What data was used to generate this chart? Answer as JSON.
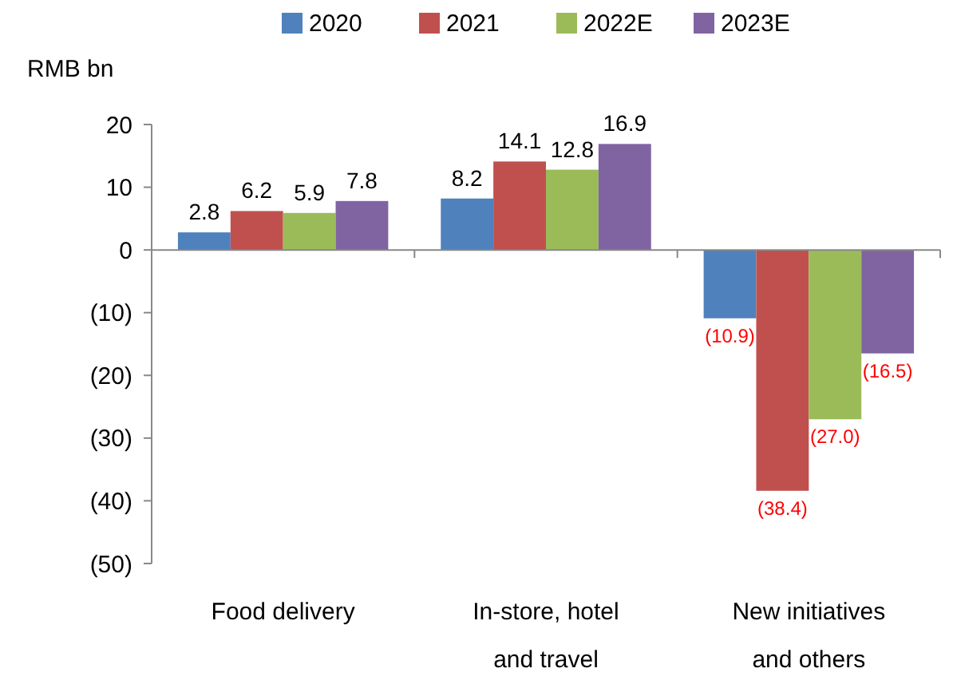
{
  "chart_data": {
    "type": "bar",
    "ylabel": "RMB bn",
    "categories": [
      "Food delivery",
      "In-store, hotel and travel",
      "New initiatives and others"
    ],
    "series": [
      {
        "name": "2020",
        "color": "#4f81bd",
        "values": [
          2.8,
          8.2,
          -10.9
        ],
        "value_labels": [
          "2.8",
          "8.2",
          "(10.9)"
        ]
      },
      {
        "name": "2021",
        "color": "#c0504d",
        "values": [
          6.2,
          14.1,
          -38.4
        ],
        "value_labels": [
          "6.2",
          "14.1",
          "(38.4)"
        ]
      },
      {
        "name": "2022E",
        "color": "#9bbb59",
        "values": [
          5.9,
          12.8,
          -27.0
        ],
        "value_labels": [
          "5.9",
          "12.8",
          "(27.0)"
        ]
      },
      {
        "name": "2023E",
        "color": "#8064a2",
        "values": [
          7.8,
          16.9,
          -16.5
        ],
        "value_labels": [
          "7.8",
          "16.9",
          "(16.5)"
        ]
      }
    ],
    "ylim": [
      -50,
      20
    ],
    "yticks": [
      20,
      10,
      0,
      {
        "value": -10,
        "label": "(10)"
      },
      {
        "value": -20,
        "label": "(20)"
      },
      {
        "value": -30,
        "label": "(30)"
      },
      {
        "value": -40,
        "label": "(40)"
      },
      {
        "value": -50,
        "label": "(50)"
      }
    ],
    "legend": "top"
  }
}
